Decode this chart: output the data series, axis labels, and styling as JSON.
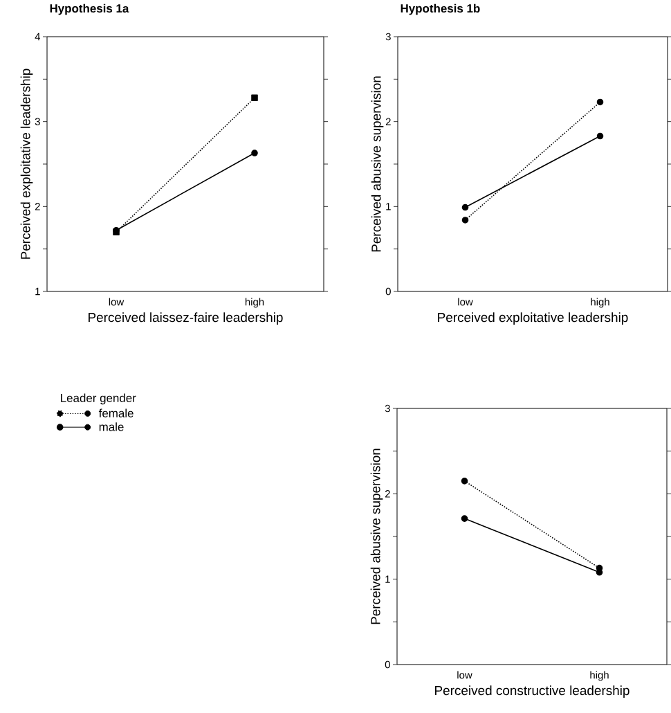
{
  "chart_data": [
    {
      "type": "line",
      "title": "Hypothesis 1a",
      "xlabel": "Perceived laissez-faire leadership",
      "ylabel": "Perceived exploitative leadership",
      "categories": [
        "low",
        "high"
      ],
      "ylim": [
        1,
        4
      ],
      "yticks": [
        1,
        {
          "value": 1.5,
          "label": null
        },
        2,
        {
          "value": 2.5,
          "label": null
        },
        3,
        {
          "value": 3.5,
          "label": null
        },
        4
      ],
      "marker": "circle",
      "series": [
        {
          "color": "#000000",
          "line_style": "dotted",
          "marker": "square",
          "values": [
            1.7,
            3.28
          ]
        },
        {
          "color": "#000000",
          "line_style": "solid",
          "values": [
            1.72,
            2.63
          ]
        }
      ]
    },
    {
      "type": "line",
      "title": "Hypothesis 1b",
      "xlabel": "Perceived exploitative leadership",
      "ylabel": "Perceived abusive supervision",
      "categories": [
        "low",
        "high"
      ],
      "ylim": [
        0,
        3
      ],
      "yticks": [
        0,
        {
          "value": 0.5,
          "label": null
        },
        1,
        {
          "value": 1.5,
          "label": null
        },
        2,
        {
          "value": 2.5,
          "label": null
        },
        3
      ],
      "marker": "circle",
      "series": [
        {
          "color": "#000000",
          "line_style": "dotted",
          "values": [
            0.84,
            2.23
          ]
        },
        {
          "color": "#000000",
          "line_style": "solid",
          "values": [
            0.99,
            1.83
          ]
        }
      ]
    },
    {
      "type": "line",
      "xlabel": "Perceived constructive leadership",
      "ylabel": "Perceived abusive supervision",
      "categories": [
        "low",
        "high"
      ],
      "ylim": [
        0,
        3
      ],
      "yticks": [
        0,
        {
          "value": 0.5,
          "label": null
        },
        1,
        {
          "value": 1.5,
          "label": null
        },
        2,
        {
          "value": 2.5,
          "label": null
        },
        3
      ],
      "marker": "circle",
      "legend": "left",
      "legend_title": "Leader gender",
      "series": [
        {
          "name": "female",
          "color": "#000000",
          "line_style": "dotted",
          "values": [
            2.15,
            1.13
          ]
        },
        {
          "name": "male",
          "color": "#000000",
          "line_style": "solid",
          "values": [
            1.71,
            1.08
          ]
        }
      ]
    }
  ]
}
